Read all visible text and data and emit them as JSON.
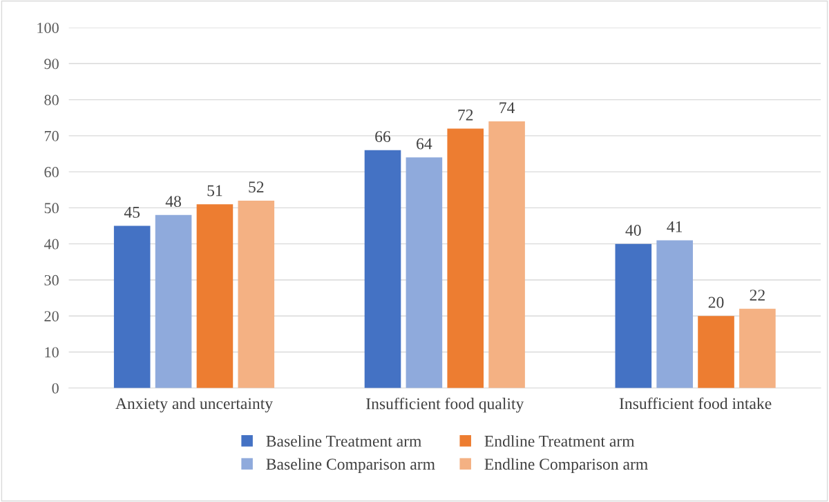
{
  "chart_data": {
    "type": "bar",
    "categories": [
      "Anxiety and uncertainty",
      "Insufficient food quality",
      "Insufficient food intake"
    ],
    "series": [
      {
        "name": "Baseline Treatment arm",
        "color": "#4472c4",
        "values": [
          45,
          66,
          40
        ]
      },
      {
        "name": "Baseline Comparison arm",
        "color": "#8faadc",
        "values": [
          48,
          64,
          41
        ]
      },
      {
        "name": "Endline Treatment arm",
        "color": "#ed7d31",
        "values": [
          51,
          72,
          20
        ]
      },
      {
        "name": "Endline Comparison arm",
        "color": "#f4b183",
        "values": [
          52,
          74,
          22
        ]
      }
    ],
    "ylim": [
      0,
      100
    ],
    "yticks": [
      0,
      10,
      20,
      30,
      40,
      50,
      60,
      70,
      80,
      90,
      100
    ],
    "grid": "y",
    "legend": "bottom",
    "data_labels": true
  }
}
